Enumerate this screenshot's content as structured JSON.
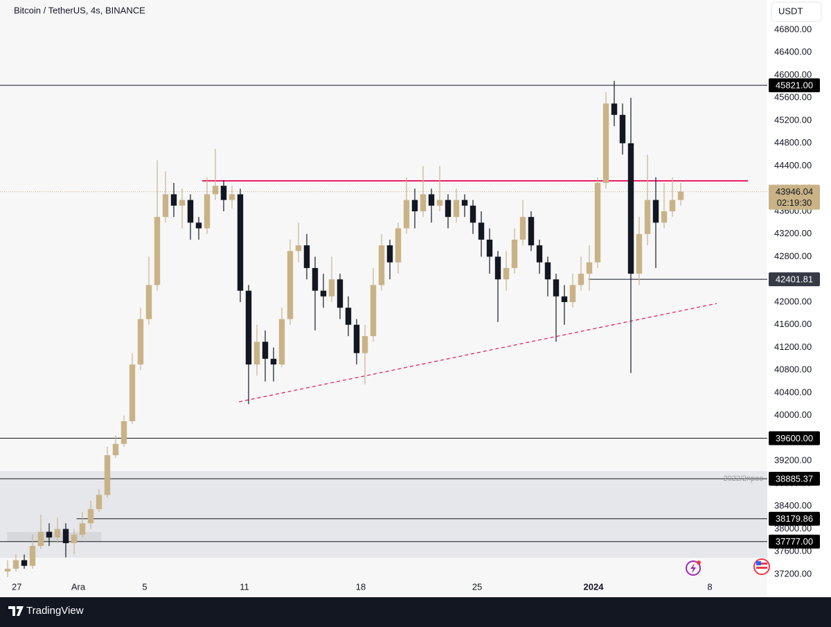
{
  "header": {
    "symbol": "Bitcoin / TetherUS, 4s, BINANCE",
    "currency": "USDT"
  },
  "chart_data": {
    "type": "candlestick",
    "up_color": "#c9b386",
    "down_color": "#131722",
    "xlim": [
      -4.2917,
      41.4583
    ],
    "ylim": [
      36797,
      47325
    ],
    "grid": false,
    "xticks": [
      {
        "value": -4,
        "label": "27"
      },
      {
        "value": 0,
        "label": "Ara"
      },
      {
        "value": 4,
        "label": "5"
      },
      {
        "value": 10,
        "label": "11"
      },
      {
        "value": 17,
        "label": "18"
      },
      {
        "value": 24,
        "label": "25"
      },
      {
        "value": 31,
        "label": "2024"
      },
      {
        "value": 38,
        "label": "8"
      }
    ],
    "yticks": [
      {
        "value": 37200,
        "label": "37200.00"
      },
      {
        "value": 37600,
        "label": "37600.00"
      },
      {
        "value": 38000,
        "label": "38000.00"
      },
      {
        "value": 38400,
        "label": "38400.00"
      },
      {
        "value": 38800,
        "label": "38800.00"
      },
      {
        "value": 39200,
        "label": "39200.00"
      },
      {
        "value": 39600,
        "label": "39600.00"
      },
      {
        "value": 40000,
        "label": "40000.00"
      },
      {
        "value": 40400,
        "label": "40400.00"
      },
      {
        "value": 40800,
        "label": "40800.00"
      },
      {
        "value": 41200,
        "label": "41200.00"
      },
      {
        "value": 41600,
        "label": "41600.00"
      },
      {
        "value": 42000,
        "label": "42000.00"
      },
      {
        "value": 42400,
        "label": "42400.00"
      },
      {
        "value": 42800,
        "label": "42800.00"
      },
      {
        "value": 43200,
        "label": "43200.00"
      },
      {
        "value": 43600,
        "label": "43600.00"
      },
      {
        "value": 44000,
        "label": "44000.00"
      },
      {
        "value": 44400,
        "label": "44400.00"
      },
      {
        "value": 44800,
        "label": "44800.00"
      },
      {
        "value": 45200,
        "label": "45200.00"
      },
      {
        "value": 45600,
        "label": "45600.00"
      },
      {
        "value": 46000,
        "label": "46000.00"
      },
      {
        "value": 46400,
        "label": "46400.00"
      },
      {
        "value": 46800,
        "label": "46800.00"
      }
    ],
    "x": [
      -4.25,
      -3.75,
      -3.25,
      -2.75,
      -2.25,
      -1.75,
      -1.25,
      -0.75,
      -0.25,
      0.25,
      0.75,
      1.25,
      1.75,
      2.25,
      2.75,
      3.25,
      3.75,
      4.25,
      4.75,
      5.25,
      5.75,
      6.25,
      6.75,
      7.25,
      7.75,
      8.25,
      8.75,
      9.25,
      9.75,
      10.25,
      10.75,
      11.25,
      11.75,
      12.25,
      12.75,
      13.25,
      13.75,
      14.25,
      14.75,
      15.25,
      15.75,
      16.25,
      16.75,
      17.25,
      17.75,
      18.25,
      18.75,
      19.25,
      19.75,
      20.25,
      20.75,
      21.25,
      21.75,
      22.25,
      22.75,
      23.25,
      23.75,
      24.25,
      24.75,
      25.25,
      25.75,
      26.25,
      26.75,
      27.25,
      27.75,
      28.25,
      28.75,
      29.25,
      29.75,
      30.25,
      30.75,
      31.25,
      31.75,
      32.25,
      32.75,
      33.25,
      33.75,
      34.25,
      34.75,
      35.25,
      35.75,
      36.25
    ],
    "open": [
      37250,
      37300,
      37450,
      37350,
      37700,
      37950,
      37850,
      38000,
      37750,
      37900,
      38100,
      38350,
      38600,
      39300,
      39500,
      39900,
      40900,
      41700,
      42300,
      43500,
      43900,
      43700,
      43800,
      43400,
      43300,
      43900,
      44050,
      43800,
      43900,
      42200,
      40900,
      41300,
      41000,
      40900,
      41700,
      42900,
      43000,
      42600,
      42200,
      42100,
      42400,
      41900,
      41600,
      41100,
      41400,
      42300,
      43000,
      42700,
      43300,
      43800,
      43600,
      43900,
      43700,
      43800,
      43500,
      43800,
      43700,
      43400,
      43100,
      42800,
      42400,
      42600,
      43100,
      43500,
      43000,
      42700,
      42400,
      42100,
      42000,
      42300,
      42500,
      42700,
      44100,
      45500,
      45300,
      44800,
      42500,
      43200,
      43800,
      43400,
      43600,
      43800
    ],
    "high": [
      37450,
      37550,
      37550,
      37900,
      38250,
      38100,
      38200,
      38100,
      38000,
      38300,
      38500,
      38700,
      39450,
      39650,
      40000,
      41100,
      41900,
      42800,
      44500,
      44300,
      44100,
      44000,
      43900,
      43500,
      44200,
      44700,
      44150,
      44050,
      44000,
      42300,
      41600,
      41500,
      41200,
      41900,
      43100,
      43400,
      43200,
      42800,
      42500,
      42800,
      42500,
      42100,
      41700,
      41600,
      42600,
      43200,
      43100,
      43400,
      44200,
      44000,
      44400,
      44000,
      44400,
      43900,
      44000,
      43900,
      43800,
      43600,
      43300,
      42900,
      42900,
      43300,
      43800,
      43600,
      43100,
      42800,
      42500,
      42300,
      42500,
      42800,
      43000,
      44200,
      45700,
      45900,
      45500,
      45600,
      43500,
      44600,
      44200,
      44100,
      44200,
      44100
    ],
    "low": [
      37150,
      37250,
      37300,
      37300,
      37650,
      37700,
      37750,
      37500,
      37550,
      37850,
      38000,
      38300,
      38550,
      39250,
      39450,
      39850,
      40800,
      41600,
      42200,
      43400,
      43500,
      43300,
      43100,
      43100,
      43200,
      43800,
      43600,
      43650,
      42000,
      40200,
      40700,
      40600,
      40600,
      40850,
      41600,
      42700,
      42400,
      41500,
      41900,
      42000,
      41700,
      41400,
      40900,
      40550,
      41300,
      42200,
      42400,
      42500,
      43200,
      43300,
      43500,
      43400,
      43600,
      43300,
      43400,
      43500,
      43200,
      42800,
      42500,
      41650,
      42200,
      42500,
      43000,
      42900,
      42500,
      42100,
      41300,
      41600,
      41900,
      42200,
      42200,
      42600,
      44000,
      45100,
      44600,
      40750,
      42300,
      43000,
      42600,
      43300,
      43500,
      43700
    ],
    "close": [
      37300,
      37450,
      37350,
      37700,
      37950,
      37850,
      38000,
      37750,
      37900,
      38100,
      38350,
      38600,
      39300,
      39500,
      39900,
      40900,
      41700,
      42300,
      43500,
      43900,
      43700,
      43800,
      43400,
      43300,
      43900,
      44050,
      43800,
      43900,
      42200,
      40900,
      41300,
      41000,
      40900,
      41700,
      42900,
      43000,
      42600,
      42200,
      42100,
      42400,
      41900,
      41600,
      41100,
      41400,
      42300,
      43000,
      42700,
      43300,
      43800,
      43600,
      43900,
      43700,
      43800,
      43500,
      43800,
      43700,
      43400,
      43100,
      42800,
      42400,
      42600,
      43100,
      43500,
      43000,
      42700,
      42400,
      42100,
      42000,
      42300,
      42500,
      42700,
      44100,
      45500,
      45300,
      44800,
      42500,
      43200,
      43800,
      43400,
      43600,
      43800,
      43946.04
    ],
    "zones": [
      {
        "ylim": [
          37493,
          39020
        ],
        "color": "#e6e7ea"
      },
      {
        "ylim": [
          37774,
          37945
        ],
        "xlim": [
          -4.2917,
          1.4
        ],
        "color": "#d6d8dc"
      }
    ],
    "levels": [
      {
        "value": 45821,
        "label": "45821.00",
        "color": "#000000"
      },
      {
        "value": 42401.81,
        "label": "42401.81",
        "color": "#363a45",
        "start": 30.7
      },
      {
        "value": 39600,
        "label": "39600.00",
        "color": "#000000"
      },
      {
        "value": 38885.37,
        "label": "38885.37",
        "color": "#000000",
        "note": "2022/2npoc"
      },
      {
        "value": 38179.86,
        "label": "38179.86",
        "color": "#000000",
        "start": -0.1
      },
      {
        "value": 37777,
        "label": "37777.00",
        "color": "#000000"
      }
    ],
    "resistance": {
      "value": 44137,
      "start": 7.46,
      "end": 40.3,
      "color": "#e91e63"
    },
    "trendline": {
      "x": [
        9.67,
        38.42
      ],
      "values": [
        40241,
        41976
      ],
      "color": "#e91e63"
    },
    "last": {
      "value": 43946.04,
      "label": "43946.04",
      "countdown": "02:19:30",
      "color": "#c9b386"
    }
  },
  "footer": {
    "brand": "TradingView"
  }
}
